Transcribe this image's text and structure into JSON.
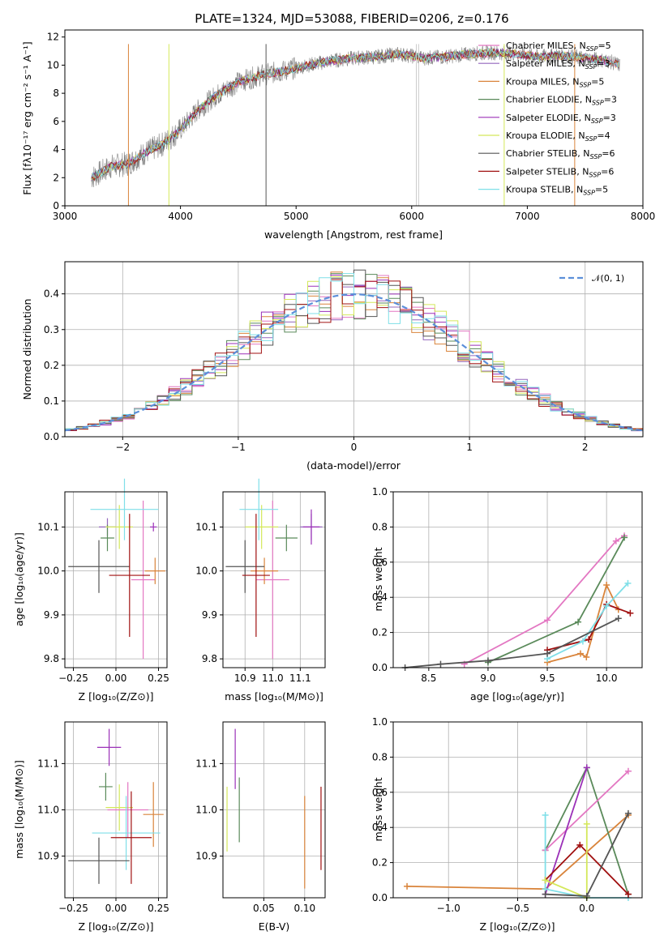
{
  "figure": {
    "title": "PLATE=1324, MJD=53088, FIBERID=0206, z=0.176"
  },
  "colors": {
    "Chabrier MILES": "#e377c2",
    "Salpeter MILES": "#9467bd",
    "Kroupa MILES": "#d9843b",
    "Chabrier ELODIE": "#5a8a5a",
    "Salpeter ELODIE": "#9b30b8",
    "Kroupa ELODIE": "#d4e85a",
    "Chabrier STELIB": "#555555",
    "Salpeter STELIB": "#a01010",
    "Kroupa STELIB": "#7fdfe8",
    "data": "#808080",
    "normal": "#5b8fd9"
  },
  "spectrum": {
    "xlabel": "wavelength [Angstrom, rest frame]",
    "ylabel": "Flux [fλ10⁻¹⁷ erg cm⁻² s⁻¹ A⁻¹]",
    "xticks": [
      "3000",
      "4000",
      "5000",
      "6000",
      "7000",
      "8000"
    ],
    "yticks": [
      "0",
      "2",
      "4",
      "6",
      "8",
      "10",
      "12"
    ],
    "legend": [
      {
        "model": "Chabrier MILES",
        "n": "5"
      },
      {
        "model": "Salpeter MILES",
        "n": "3"
      },
      {
        "model": "Kroupa MILES",
        "n": "5"
      },
      {
        "model": "Chabrier ELODIE",
        "n": "3"
      },
      {
        "model": "Salpeter ELODIE",
        "n": "3"
      },
      {
        "model": "Kroupa ELODIE",
        "n": "4"
      },
      {
        "model": "Chabrier STELIB",
        "n": "6"
      },
      {
        "model": "Salpeter STELIB",
        "n": "6"
      },
      {
        "model": "Kroupa STELIB",
        "n": "5"
      }
    ],
    "legend_suffix": "SSP"
  },
  "residuals": {
    "xlabel": "(data-model)/error",
    "ylabel": "Normed distribution",
    "xticks": [
      "−2",
      "−1",
      "0",
      "1",
      "2"
    ],
    "yticks": [
      "0.0",
      "0.1",
      "0.2",
      "0.3",
      "0.4"
    ],
    "legend": "𝒩(0, 1)"
  },
  "age_vs_z": {
    "xlabel": "Z [log₁₀(Z/Z⊙)]",
    "ylabel": "age  [log₁₀(age/yr)]",
    "xticks": [
      "−0.25",
      "0.00",
      "0.25"
    ],
    "yticks": [
      "9.8",
      "9.9",
      "10.0",
      "10.1"
    ]
  },
  "age_vs_mass": {
    "xlabel": "mass [log₁₀(M/M⊙)]",
    "xticks": [
      "10.9",
      "11.0",
      "11.1"
    ],
    "yticks": [
      "9.8",
      "9.9",
      "10.0",
      "10.1"
    ]
  },
  "mw_vs_age": {
    "xlabel": "age  [log₁₀(age/yr)]",
    "ylabel": "mass weight",
    "xticks": [
      "8.5",
      "9.0",
      "9.5",
      "10.0"
    ],
    "yticks": [
      "0.0",
      "0.2",
      "0.4",
      "0.6",
      "0.8",
      "1.0"
    ]
  },
  "mass_vs_z": {
    "xlabel": "Z [log₁₀(Z/Z⊙)]",
    "ylabel": "mass [log₁₀(M/M⊙)]",
    "xticks": [
      "−0.25",
      "0.00",
      "0.25"
    ],
    "yticks": [
      "10.9",
      "11.0",
      "11.1"
    ]
  },
  "mass_vs_ebv": {
    "xlabel": "E(B-V)",
    "xticks": [
      "0.05",
      "0.10"
    ],
    "yticks": [
      "10.9",
      "11.0",
      "11.1"
    ]
  },
  "mw_vs_z": {
    "xlabel": "Z [log₁₀(Z/Z⊙)]",
    "ylabel": "mass weight",
    "xticks": [
      "−1.0",
      "−0.5",
      "0.0"
    ],
    "yticks": [
      "0.0",
      "0.2",
      "0.4",
      "0.6",
      "0.8",
      "1.0"
    ]
  },
  "chart_data": [
    {
      "type": "line",
      "panel": "spectrum",
      "title": "PLATE=1324, MJD=53088, FIBERID=0206, z=0.176",
      "xlabel": "wavelength [Angstrom, rest frame]",
      "ylabel": "Flux [fλ10⁻¹⁷ erg cm⁻² s⁻¹ A⁻¹]",
      "xlim": [
        3000,
        8000
      ],
      "ylim": [
        0,
        12.5
      ],
      "x": [
        3230,
        3400,
        3550,
        3700,
        3850,
        4000,
        4150,
        4300,
        4500,
        4700,
        4900,
        5100,
        5300,
        5500,
        5700,
        5900,
        6100,
        6300,
        6500,
        6700,
        6900,
        7100,
        7300,
        7500,
        7700,
        7800
      ],
      "series": [
        {
          "name": "data",
          "values": [
            2.0,
            2.8,
            3.0,
            3.8,
            4.4,
            5.4,
            6.8,
            7.8,
            8.8,
            9.3,
            9.6,
            10.0,
            10.3,
            10.5,
            10.6,
            10.8,
            10.5,
            10.6,
            10.8,
            10.9,
            10.8,
            10.6,
            10.7,
            10.5,
            10.3,
            10.0
          ]
        }
      ]
    },
    {
      "type": "line",
      "panel": "residuals",
      "xlabel": "(data-model)/error",
      "ylabel": "Normed distribution",
      "xlim": [
        -2.5,
        2.5
      ],
      "ylim": [
        0,
        0.49
      ],
      "series": [
        {
          "name": "𝒩(0, 1)",
          "x": [
            -2.5,
            -2.0,
            -1.5,
            -1.0,
            -0.5,
            0.0,
            0.5,
            1.0,
            1.5,
            2.0,
            2.5
          ],
          "values": [
            0.018,
            0.054,
            0.13,
            0.242,
            0.352,
            0.399,
            0.352,
            0.242,
            0.13,
            0.054,
            0.018
          ]
        },
        {
          "name": "Chabrier MILES",
          "x": [
            -2.5,
            -2.0,
            -1.5,
            -1.0,
            -0.5,
            0.0,
            0.5,
            1.0,
            1.5,
            2.0,
            2.5
          ],
          "values": [
            0.03,
            0.05,
            0.14,
            0.22,
            0.33,
            0.43,
            0.36,
            0.24,
            0.13,
            0.06,
            0.03
          ]
        },
        {
          "name": "Salpeter STELIB",
          "x": [
            -2.5,
            -2.0,
            -1.5,
            -1.0,
            -0.5,
            0.0,
            0.5,
            1.0,
            1.5,
            2.0,
            2.5
          ],
          "values": [
            0.02,
            0.06,
            0.12,
            0.25,
            0.34,
            0.44,
            0.35,
            0.23,
            0.12,
            0.05,
            0.02
          ]
        }
      ]
    },
    {
      "type": "scatter",
      "panel": "age vs Z",
      "xlabel": "Z [log₁₀(Z/Z⊙)]",
      "ylabel": "age  [log₁₀(age/yr)]",
      "xlim": [
        -0.3,
        0.3
      ],
      "ylim": [
        9.78,
        10.18
      ],
      "series": [
        {
          "name": "Chabrier MILES",
          "x": [
            0.16
          ],
          "values": [
            9.98
          ]
        },
        {
          "name": "Salpeter MILES",
          "x": [
            -0.05
          ],
          "values": [
            10.1
          ]
        },
        {
          "name": "Kroupa MILES",
          "x": [
            0.23
          ],
          "values": [
            10.0
          ]
        },
        {
          "name": "Chabrier ELODIE",
          "x": [
            -0.05
          ],
          "values": [
            10.075
          ]
        },
        {
          "name": "Salpeter ELODIE",
          "x": [
            0.22
          ],
          "values": [
            10.1
          ]
        },
        {
          "name": "Kroupa ELODIE",
          "x": [
            0.02
          ],
          "values": [
            10.1
          ]
        },
        {
          "name": "Chabrier STELIB",
          "x": [
            -0.1
          ],
          "values": [
            10.01
          ]
        },
        {
          "name": "Salpeter STELIB",
          "x": [
            0.08
          ],
          "values": [
            9.99
          ]
        },
        {
          "name": "Kroupa STELIB",
          "x": [
            0.05
          ],
          "values": [
            10.14
          ]
        }
      ]
    },
    {
      "type": "scatter",
      "panel": "age vs mass",
      "xlabel": "mass [log₁₀(M/M⊙)]",
      "xlim": [
        10.82,
        11.19
      ],
      "ylim": [
        9.78,
        10.18
      ],
      "series": [
        {
          "name": "Chabrier MILES",
          "x": [
            11.0
          ],
          "values": [
            9.98
          ]
        },
        {
          "name": "Salpeter MILES",
          "x": [
            11.14
          ],
          "values": [
            10.1
          ]
        },
        {
          "name": "Kroupa MILES",
          "x": [
            10.97
          ],
          "values": [
            10.0
          ]
        },
        {
          "name": "Chabrier ELODIE",
          "x": [
            11.05
          ],
          "values": [
            10.075
          ]
        },
        {
          "name": "Salpeter ELODIE",
          "x": [
            11.14
          ],
          "values": [
            10.1
          ]
        },
        {
          "name": "Kroupa ELODIE",
          "x": [
            10.96
          ],
          "values": [
            10.1
          ]
        },
        {
          "name": "Chabrier STELIB",
          "x": [
            10.9
          ],
          "values": [
            10.01
          ]
        },
        {
          "name": "Salpeter STELIB",
          "x": [
            10.94
          ],
          "values": [
            9.99
          ]
        },
        {
          "name": "Kroupa STELIB",
          "x": [
            10.95
          ],
          "values": [
            10.14
          ]
        }
      ]
    },
    {
      "type": "line",
      "panel": "mass weight vs age",
      "xlabel": "age  [log₁₀(age/yr)]",
      "ylabel": "mass weight",
      "xlim": [
        8.2,
        10.3
      ],
      "ylim": [
        0,
        1.0
      ],
      "series": [
        {
          "name": "Chabrier MILES",
          "x": [
            8.8,
            9.5,
            10.08,
            10.15
          ],
          "values": [
            0.02,
            0.27,
            0.72,
            0.75
          ]
        },
        {
          "name": "Chabrier ELODIE",
          "x": [
            9.0,
            9.76,
            10.15
          ],
          "values": [
            0.03,
            0.26,
            0.74
          ]
        },
        {
          "name": "Kroupa MILES",
          "x": [
            9.5,
            9.78,
            9.83,
            10.0,
            10.1
          ],
          "values": [
            0.03,
            0.08,
            0.06,
            0.47,
            0.33
          ]
        },
        {
          "name": "Salpeter STELIB",
          "x": [
            9.5,
            9.85,
            10.0,
            10.2
          ],
          "values": [
            0.1,
            0.16,
            0.36,
            0.31
          ]
        },
        {
          "name": "Kroupa STELIB",
          "x": [
            9.5,
            9.8,
            10.0,
            10.18
          ],
          "values": [
            0.05,
            0.15,
            0.35,
            0.48
          ]
        },
        {
          "name": "Chabrier STELIB",
          "x": [
            8.3,
            8.6,
            9.0,
            9.5,
            10.1
          ],
          "values": [
            0.0,
            0.02,
            0.04,
            0.08,
            0.28
          ]
        }
      ]
    },
    {
      "type": "scatter",
      "panel": "mass vs Z",
      "xlabel": "Z [log₁₀(Z/Z⊙)]",
      "ylabel": "mass [log₁₀(M/M⊙)]",
      "xlim": [
        -0.3,
        0.3
      ],
      "ylim": [
        10.81,
        11.19
      ],
      "series": [
        {
          "name": "Salpeter ELODIE",
          "x": [
            -0.04
          ],
          "values": [
            11.135
          ]
        },
        {
          "name": "Chabrier ELODIE",
          "x": [
            -0.06
          ],
          "values": [
            11.05
          ]
        },
        {
          "name": "Kroupa ELODIE",
          "x": [
            0.02
          ],
          "values": [
            11.005
          ]
        },
        {
          "name": "Chabrier MILES",
          "x": [
            0.07
          ],
          "values": [
            11.0
          ]
        },
        {
          "name": "Kroupa MILES",
          "x": [
            0.22
          ],
          "values": [
            10.99
          ]
        },
        {
          "name": "Kroupa STELIB",
          "x": [
            0.06
          ],
          "values": [
            10.95
          ]
        },
        {
          "name": "Salpeter STELIB",
          "x": [
            0.09
          ],
          "values": [
            10.94
          ]
        },
        {
          "name": "Chabrier STELIB",
          "x": [
            -0.1
          ],
          "values": [
            10.89
          ]
        }
      ]
    },
    {
      "type": "scatter",
      "panel": "mass vs E(B-V)",
      "xlabel": "E(B-V)",
      "xlim": [
        0.0,
        0.125
      ],
      "ylim": [
        10.81,
        11.19
      ],
      "series": [
        {
          "name": "Kroupa ELODIE",
          "x": [
            0.005
          ],
          "values": [
            10.98
          ]
        },
        {
          "name": "Salpeter ELODIE",
          "x": [
            0.015
          ],
          "values": [
            11.11
          ]
        },
        {
          "name": "Chabrier ELODIE",
          "x": [
            0.02
          ],
          "values": [
            11.0
          ]
        },
        {
          "name": "Kroupa MILES",
          "x": [
            0.1
          ],
          "values": [
            10.93
          ]
        },
        {
          "name": "Salpeter STELIB",
          "x": [
            0.12
          ],
          "values": [
            10.96
          ]
        }
      ]
    },
    {
      "type": "line",
      "panel": "mass weight vs Z",
      "xlabel": "Z [log₁₀(Z/Z⊙)]",
      "ylabel": "mass weight",
      "xlim": [
        -1.4,
        0.4
      ],
      "ylim": [
        0,
        1.0
      ],
      "series": [
        {
          "name": "Kroupa MILES",
          "x": [
            -1.3,
            -0.3,
            0.3
          ],
          "values": [
            0.065,
            0.05,
            0.47
          ]
        },
        {
          "name": "Chabrier ELODIE",
          "x": [
            -0.3,
            0.0,
            0.3
          ],
          "values": [
            0.27,
            0.74,
            0.02
          ]
        },
        {
          "name": "Chabrier MILES",
          "x": [
            -0.3,
            0.3
          ],
          "values": [
            0.27,
            0.72
          ]
        },
        {
          "name": "Salpeter ELODIE",
          "x": [
            -0.3,
            0.0
          ],
          "values": [
            0.02,
            0.74
          ]
        },
        {
          "name": "Kroupa STELIB",
          "x": [
            -0.3,
            -0.3,
            0.0,
            0.3
          ],
          "values": [
            0.47,
            0.05,
            0.0,
            0.0
          ]
        },
        {
          "name": "Salpeter STELIB",
          "x": [
            -0.3,
            -0.05,
            0.3
          ],
          "values": [
            0.1,
            0.3,
            0.02
          ]
        },
        {
          "name": "Kroupa ELODIE",
          "x": [
            -0.3,
            0.0,
            0.0
          ],
          "values": [
            0.1,
            0.0,
            0.42
          ]
        },
        {
          "name": "Chabrier STELIB",
          "x": [
            -0.3,
            0.0,
            0.3
          ],
          "values": [
            0.02,
            0.01,
            0.48
          ]
        }
      ]
    }
  ]
}
